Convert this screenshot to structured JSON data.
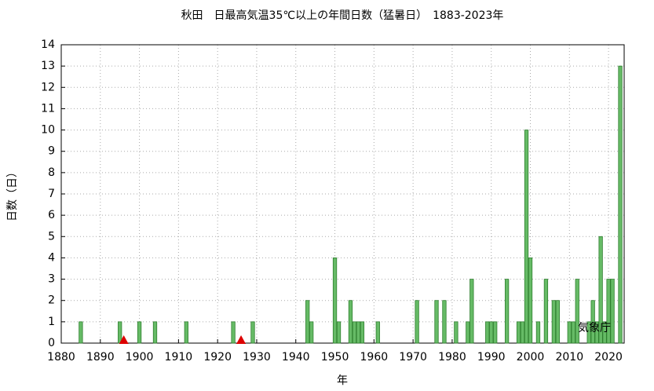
{
  "chart_data": {
    "type": "bar",
    "title": "秋田　日最高気温35℃以上の年間日数（猛暑日）　1883-2023年",
    "x_label": "年",
    "y_label": "日数（日）",
    "annotation": "気象庁",
    "x": [
      1885,
      1895,
      1900,
      1904,
      1912,
      1924,
      1929,
      1943,
      1944,
      1950,
      1951,
      1954,
      1955,
      1956,
      1957,
      1961,
      1971,
      1976,
      1978,
      1981,
      1984,
      1985,
      1989,
      1990,
      1991,
      1994,
      1997,
      1998,
      1999,
      2000,
      2002,
      2004,
      2006,
      2007,
      2010,
      2011,
      2012,
      2015,
      2016,
      2017,
      2018,
      2019,
      2020,
      2021,
      2023
    ],
    "values": [
      1,
      1,
      1,
      1,
      1,
      1,
      1,
      2,
      1,
      4,
      1,
      2,
      1,
      1,
      1,
      1,
      2,
      2,
      2,
      1,
      1,
      3,
      1,
      1,
      1,
      3,
      1,
      1,
      10,
      4,
      1,
      3,
      2,
      2,
      1,
      1,
      3,
      1,
      2,
      1,
      5,
      1,
      3,
      3,
      13
    ],
    "color": "#66bb66",
    "markers": {
      "color": "#dd0000",
      "x": [
        1896,
        1926
      ]
    },
    "xlim": [
      1880,
      2024
    ],
    "xticks": [
      1880,
      1890,
      1900,
      1910,
      1920,
      1930,
      1940,
      1950,
      1960,
      1970,
      1980,
      1990,
      2000,
      2010,
      2020
    ],
    "ylim": [
      0,
      14
    ],
    "yticks": [
      0,
      1,
      2,
      3,
      4,
      5,
      6,
      7,
      8,
      9,
      10,
      11,
      12,
      13,
      14
    ],
    "grid": true
  }
}
